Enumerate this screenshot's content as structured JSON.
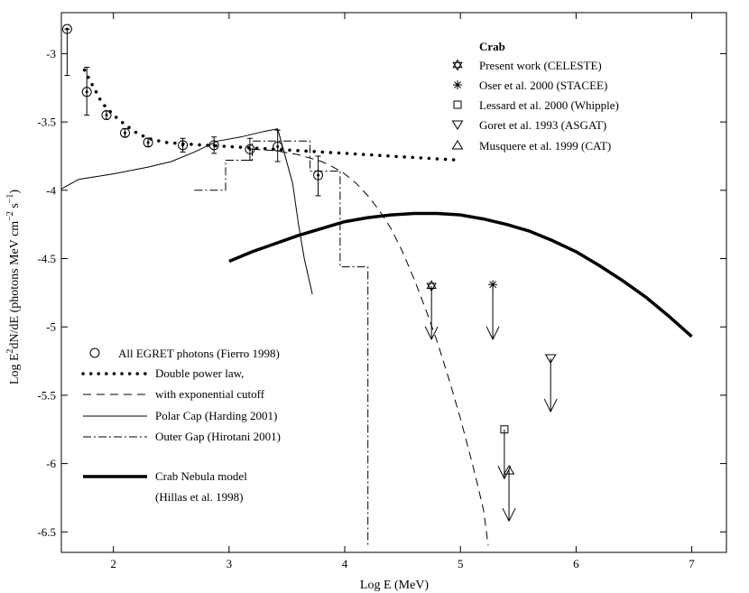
{
  "chart_data": {
    "type": "scatter",
    "xlabel": "Log E (MeV)",
    "ylabel_parts": [
      "Log E",
      "2",
      "dN/dE (photons MeV cm",
      "−2",
      " s",
      "−1",
      ")"
    ],
    "xlim": [
      1.55,
      7.3
    ],
    "ylim": [
      -6.65,
      -2.7
    ],
    "x_ticks": [
      2,
      3,
      4,
      5,
      6,
      7
    ],
    "x_tick_labels": [
      "2",
      "3",
      "4",
      "5",
      "6",
      "7"
    ],
    "y_ticks": [
      -3,
      -3.5,
      -4,
      -4.5,
      -5,
      -5.5,
      -6,
      -6.5
    ],
    "y_tick_labels": [
      "-3",
      "-3.5",
      "-4",
      "-4.5",
      "-5",
      "-5.5",
      "-6",
      "-6.5"
    ],
    "grid": false,
    "egret": {
      "name": "All EGRET photons (Fierro 1998)",
      "points": [
        {
          "x": 1.6,
          "y": -2.82,
          "lo": -3.16,
          "hi": -2.82
        },
        {
          "x": 1.77,
          "y": -3.28,
          "lo": -3.45,
          "hi": -3.1
        },
        {
          "x": 1.94,
          "y": -3.45,
          "lo": -3.48,
          "hi": -3.42
        },
        {
          "x": 2.1,
          "y": -3.58,
          "lo": -3.61,
          "hi": -3.55
        },
        {
          "x": 2.3,
          "y": -3.65,
          "lo": -3.68,
          "hi": -3.62
        },
        {
          "x": 2.6,
          "y": -3.67,
          "lo": -3.72,
          "hi": -3.62
        },
        {
          "x": 2.87,
          "y": -3.67,
          "lo": -3.73,
          "hi": -3.61
        },
        {
          "x": 3.18,
          "y": -3.7,
          "lo": -3.78,
          "hi": -3.62
        },
        {
          "x": 3.42,
          "y": -3.68,
          "lo": -3.79,
          "hi": -3.56
        },
        {
          "x": 3.77,
          "y": -3.89,
          "lo": -4.04,
          "hi": -3.75
        }
      ]
    },
    "double_power_law": {
      "name": "Double power law,",
      "x": [
        1.75,
        1.9,
        2.0,
        2.1,
        2.2,
        2.3,
        2.45,
        2.6,
        2.8,
        3.0,
        3.2,
        3.4,
        3.6,
        3.8,
        4.0,
        4.2,
        4.4,
        4.6,
        4.8,
        5.0
      ],
      "y": [
        -3.12,
        -3.36,
        -3.45,
        -3.52,
        -3.58,
        -3.62,
        -3.65,
        -3.66,
        -3.67,
        -3.68,
        -3.69,
        -3.7,
        -3.71,
        -3.72,
        -3.73,
        -3.74,
        -3.75,
        -3.76,
        -3.77,
        -3.78
      ]
    },
    "exponential_cutoff": {
      "name": "with exponential cutoff",
      "x": [
        3.2,
        3.4,
        3.6,
        3.8,
        3.9,
        4.0,
        4.1,
        4.2,
        4.3,
        4.4,
        4.5,
        4.6,
        4.7,
        4.8,
        4.9,
        5.0,
        5.1,
        5.15,
        5.2,
        5.24
      ],
      "y": [
        -3.7,
        -3.71,
        -3.74,
        -3.79,
        -3.83,
        -3.88,
        -3.95,
        -4.04,
        -4.15,
        -4.28,
        -4.45,
        -4.65,
        -4.87,
        -5.11,
        -5.38,
        -5.67,
        -5.99,
        -6.16,
        -6.34,
        -6.6
      ]
    },
    "polar_cap": {
      "name": "Polar Cap (Harding 2001)",
      "x": [
        1.55,
        1.7,
        2.0,
        2.3,
        2.5,
        2.7,
        2.9,
        3.1,
        3.3,
        3.42,
        3.55,
        3.6,
        3.65,
        3.72
      ],
      "y": [
        -3.99,
        -3.92,
        -3.88,
        -3.83,
        -3.79,
        -3.72,
        -3.64,
        -3.61,
        -3.57,
        -3.55,
        -3.95,
        -4.25,
        -4.5,
        -4.76
      ]
    },
    "outer_gap": {
      "name": "Outer Gap (Hirotani 2001)",
      "x": [
        2.7,
        2.97,
        2.97,
        3.2,
        3.2,
        3.7,
        3.7,
        3.96,
        3.96,
        4.2,
        4.2
      ],
      "y": [
        -4.0,
        -4.0,
        -3.78,
        -3.78,
        -3.64,
        -3.64,
        -3.86,
        -3.86,
        -4.56,
        -4.56,
        -6.6
      ]
    },
    "nebula": {
      "name1": "Crab Nebula model",
      "name2": "(Hillas et al. 1998)",
      "x": [
        3.0,
        3.2,
        3.4,
        3.6,
        3.8,
        4.0,
        4.2,
        4.4,
        4.6,
        4.8,
        5.0,
        5.2,
        5.4,
        5.6,
        5.8,
        6.0,
        6.2,
        6.4,
        6.6,
        6.8,
        7.0
      ],
      "y": [
        -4.52,
        -4.45,
        -4.39,
        -4.33,
        -4.28,
        -4.23,
        -4.2,
        -4.18,
        -4.17,
        -4.17,
        -4.18,
        -4.21,
        -4.25,
        -4.3,
        -4.37,
        -4.45,
        -4.55,
        -4.66,
        -4.78,
        -4.92,
        -5.07
      ]
    },
    "crab_title": "Crab",
    "upper_limits": [
      {
        "label": "Present work    (CELESTE)",
        "marker": "star",
        "x": 4.75,
        "y": -4.7,
        "arrow_to": -5.09
      },
      {
        "label": "Oser et al. 2000   (STACEE)",
        "marker": "asterisk",
        "x": 5.28,
        "y": -4.69,
        "arrow_to": -5.09
      },
      {
        "label": "Lessard et al. 2000 (Whipple)",
        "marker": "square",
        "x": 5.38,
        "y": -5.75,
        "arrow_to": -6.11
      },
      {
        "label": "Goret et al. 1993   (ASGAT)",
        "marker": "triangle-down",
        "x": 5.78,
        "y": -5.23,
        "arrow_to": -5.62
      },
      {
        "label": "Musquere et al. 1999  (CAT)",
        "marker": "triangle-up",
        "x": 5.42,
        "y": -6.05,
        "arrow_to": -6.42
      }
    ]
  }
}
